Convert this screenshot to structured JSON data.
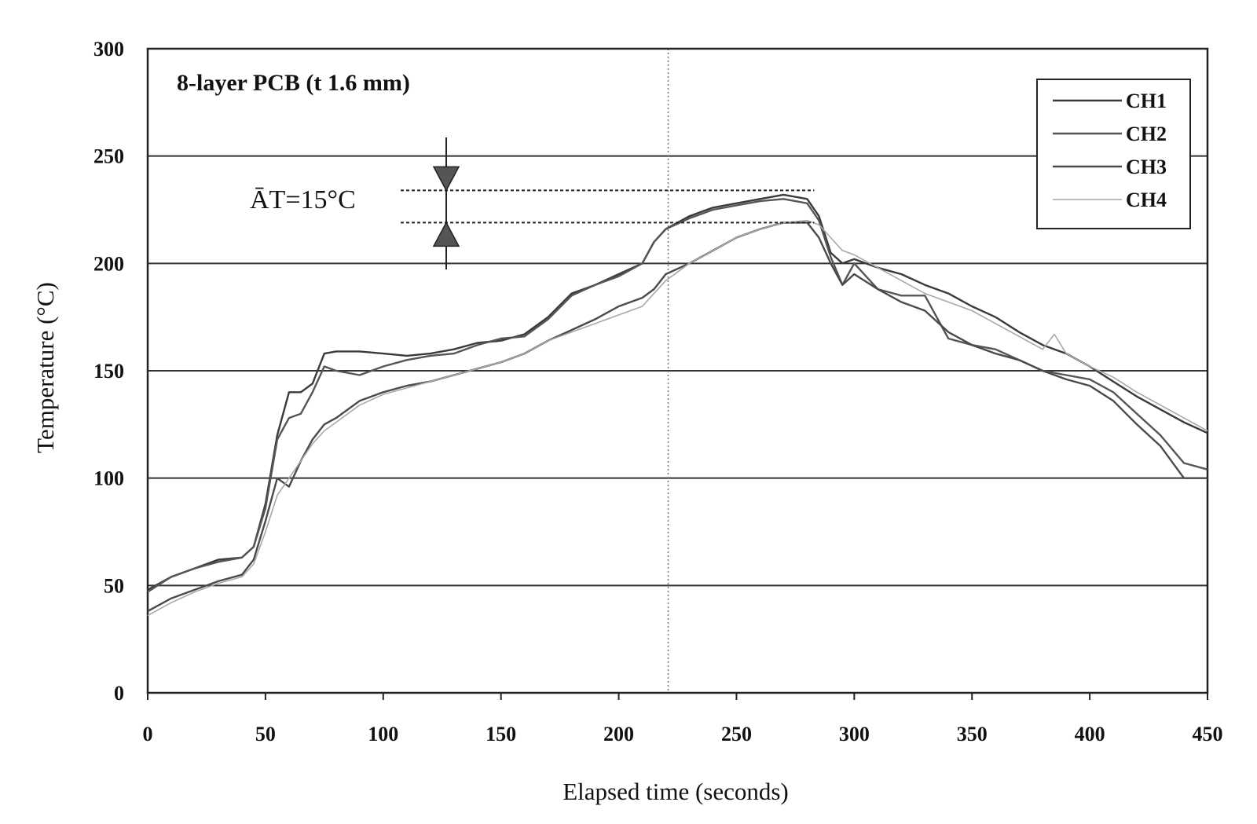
{
  "chart_data": {
    "type": "line",
    "title": "",
    "xlabel": "Elapsed time (seconds)",
    "ylabel": "Temperature (°C)",
    "xlim": [
      0,
      450
    ],
    "ylim": [
      0,
      300
    ],
    "xticks": [
      0,
      50,
      100,
      150,
      200,
      250,
      300,
      350,
      400,
      450
    ],
    "yticks": [
      0,
      50,
      100,
      150,
      200,
      250,
      300
    ],
    "grid": {
      "horizontal": true,
      "vertical": "dotted line near x≈221"
    },
    "legend": "top-right",
    "annotations": {
      "board": "8-layer PCB (t 1.6 mm)",
      "delta_t": "ĀT=15°C",
      "delta_t_lines": [
        234,
        219
      ]
    },
    "series": [
      {
        "name": "CH1",
        "x": [
          0,
          10,
          20,
          30,
          40,
          45,
          50,
          55,
          60,
          65,
          70,
          75,
          80,
          90,
          100,
          110,
          120,
          130,
          140,
          150,
          160,
          170,
          180,
          190,
          200,
          210,
          215,
          220,
          230,
          240,
          250,
          260,
          270,
          280,
          285,
          290,
          295,
          300,
          310,
          320,
          330,
          340,
          350,
          360,
          370,
          380,
          390,
          400,
          410,
          420,
          430,
          440,
          450
        ],
        "y": [
          48,
          54,
          58,
          62,
          63,
          68,
          88,
          120,
          140,
          140,
          144,
          158,
          159,
          159,
          158,
          157,
          158,
          160,
          163,
          164,
          167,
          175,
          186,
          190,
          195,
          200,
          210,
          216,
          222,
          226,
          228,
          230,
          232,
          230,
          222,
          205,
          200,
          202,
          198,
          195,
          190,
          186,
          180,
          175,
          168,
          162,
          158,
          152,
          145,
          138,
          132,
          126,
          121
        ]
      },
      {
        "name": "CH2",
        "x": [
          0,
          10,
          20,
          30,
          40,
          45,
          50,
          55,
          60,
          65,
          70,
          75,
          80,
          90,
          100,
          110,
          120,
          130,
          140,
          150,
          160,
          170,
          180,
          190,
          200,
          210,
          215,
          220,
          230,
          240,
          250,
          260,
          270,
          280,
          285,
          290,
          295,
          300,
          310,
          320,
          330,
          340,
          350,
          360,
          370,
          380,
          390,
          400,
          410,
          420,
          430,
          440,
          450
        ],
        "y": [
          47,
          54,
          58,
          61,
          63,
          68,
          86,
          118,
          128,
          130,
          140,
          152,
          150,
          148,
          152,
          155,
          157,
          158,
          162,
          165,
          166,
          174,
          185,
          190,
          194,
          200,
          210,
          216,
          221,
          225,
          227,
          229,
          230,
          228,
          220,
          203,
          190,
          200,
          188,
          185,
          185,
          165,
          162,
          160,
          155,
          150,
          148,
          146,
          140,
          130,
          120,
          107,
          104
        ]
      },
      {
        "name": "CH3",
        "x": [
          0,
          10,
          20,
          30,
          40,
          45,
          50,
          55,
          60,
          65,
          70,
          75,
          80,
          90,
          100,
          110,
          120,
          130,
          140,
          150,
          160,
          170,
          180,
          190,
          200,
          210,
          215,
          220,
          230,
          240,
          250,
          260,
          270,
          280,
          285,
          290,
          295,
          300,
          310,
          320,
          330,
          340,
          350,
          360,
          370,
          380,
          390,
          400,
          410,
          420,
          430,
          440,
          450
        ],
        "y": [
          38,
          44,
          48,
          52,
          55,
          62,
          80,
          100,
          96,
          108,
          118,
          125,
          128,
          136,
          140,
          143,
          145,
          148,
          151,
          154,
          158,
          164,
          169,
          174,
          180,
          184,
          188,
          195,
          200,
          206,
          212,
          216,
          219,
          219,
          212,
          200,
          190,
          195,
          188,
          182,
          178,
          168,
          162,
          158,
          155,
          150,
          146,
          143,
          136,
          125,
          115,
          100,
          100
        ]
      },
      {
        "name": "CH4",
        "x": [
          0,
          10,
          20,
          30,
          40,
          45,
          50,
          55,
          60,
          65,
          70,
          75,
          80,
          90,
          100,
          110,
          120,
          130,
          140,
          150,
          160,
          170,
          180,
          190,
          200,
          210,
          215,
          220,
          230,
          240,
          250,
          260,
          270,
          280,
          285,
          290,
          295,
          300,
          310,
          320,
          330,
          340,
          350,
          360,
          370,
          380,
          385,
          390,
          400,
          410,
          420,
          430,
          440,
          450
        ],
        "y": [
          36,
          42,
          47,
          51,
          54,
          60,
          75,
          92,
          100,
          108,
          116,
          122,
          126,
          134,
          139,
          142,
          145,
          148,
          151,
          154,
          158,
          164,
          168,
          172,
          176,
          180,
          186,
          192,
          200,
          206,
          212,
          216,
          219,
          220,
          218,
          212,
          206,
          204,
          198,
          192,
          186,
          182,
          178,
          172,
          166,
          160,
          167,
          158,
          152,
          147,
          140,
          134,
          128,
          122
        ]
      }
    ]
  }
}
